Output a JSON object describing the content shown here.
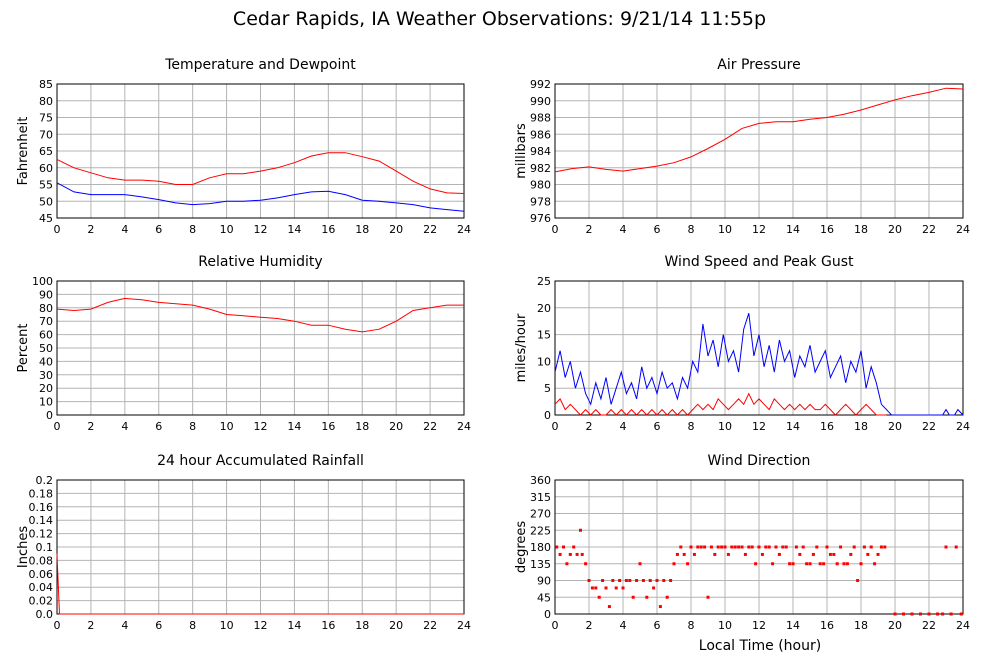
{
  "page_title": "Cedar Rapids, IA Weather Observations: 9/21/14 11:55p",
  "x_axis_label": "Local Time (hour)",
  "colors": {
    "red": "#ff0000",
    "blue": "#0000ff",
    "grid": "#b4b4b4"
  },
  "chart_data": [
    {
      "id": "temp",
      "type": "line",
      "title": "Temperature and Dewpoint",
      "ylabel": "Fahrenheit",
      "xlim": [
        0,
        24
      ],
      "ylim": [
        45,
        85
      ],
      "xticks": [
        0,
        2,
        4,
        6,
        8,
        10,
        12,
        14,
        16,
        18,
        20,
        22,
        24
      ],
      "yticks": [
        45,
        50,
        55,
        60,
        65,
        70,
        75,
        80,
        85
      ],
      "grid": true,
      "series": [
        {
          "color": "red",
          "x": [
            0,
            1,
            2,
            3,
            4,
            5,
            6,
            7,
            8,
            9,
            10,
            11,
            12,
            13,
            14,
            15,
            16,
            17,
            18,
            19,
            20,
            21,
            22,
            23,
            24
          ],
          "y": [
            62.5,
            60,
            58.5,
            57,
            56.3,
            56.3,
            56,
            55,
            55,
            57,
            58.2,
            58.2,
            59,
            60,
            61.5,
            63.5,
            64.5,
            64.5,
            63.3,
            62,
            59,
            56,
            53.7,
            52.5,
            52.3
          ]
        },
        {
          "color": "blue",
          "x": [
            0,
            1,
            2,
            3,
            4,
            5,
            6,
            7,
            8,
            9,
            10,
            11,
            12,
            13,
            14,
            15,
            16,
            17,
            18,
            19,
            20,
            21,
            22,
            23,
            24
          ],
          "y": [
            55.5,
            52.8,
            52,
            52,
            52,
            51.3,
            50.5,
            49.5,
            49,
            49.3,
            50,
            50,
            50.3,
            51,
            52,
            52.8,
            53,
            52,
            50.3,
            50,
            49.5,
            49,
            48,
            47.5,
            47
          ]
        }
      ]
    },
    {
      "id": "pressure",
      "type": "line",
      "title": "Air Pressure",
      "ylabel": "millibars",
      "xlim": [
        0,
        24
      ],
      "ylim": [
        976,
        992
      ],
      "xticks": [
        0,
        2,
        4,
        6,
        8,
        10,
        12,
        14,
        16,
        18,
        20,
        22,
        24
      ],
      "yticks": [
        976,
        978,
        980,
        982,
        984,
        986,
        988,
        990,
        992
      ],
      "grid": true,
      "series": [
        {
          "color": "red",
          "x": [
            0,
            1,
            2,
            3,
            4,
            5,
            6,
            7,
            8,
            9,
            10,
            11,
            12,
            13,
            14,
            15,
            16,
            17,
            18,
            19,
            20,
            21,
            22,
            23,
            24
          ],
          "y": [
            981.5,
            981.9,
            982.1,
            981.8,
            981.6,
            981.9,
            982.2,
            982.6,
            983.3,
            984.3,
            985.4,
            986.7,
            987.3,
            987.5,
            987.5,
            987.8,
            988.0,
            988.4,
            988.9,
            989.5,
            990.1,
            990.6,
            991.0,
            991.5,
            991.4
          ]
        }
      ]
    },
    {
      "id": "humidity",
      "type": "line",
      "title": "Relative Humidity",
      "ylabel": "Percent",
      "xlim": [
        0,
        24
      ],
      "ylim": [
        0,
        100
      ],
      "xticks": [
        0,
        2,
        4,
        6,
        8,
        10,
        12,
        14,
        16,
        18,
        20,
        22,
        24
      ],
      "yticks": [
        0,
        10,
        20,
        30,
        40,
        50,
        60,
        70,
        80,
        90,
        100
      ],
      "grid": true,
      "series": [
        {
          "color": "red",
          "x": [
            0,
            1,
            2,
            3,
            4,
            5,
            6,
            7,
            8,
            9,
            10,
            11,
            12,
            13,
            14,
            15,
            16,
            17,
            18,
            19,
            20,
            21,
            22,
            23,
            24
          ],
          "y": [
            79,
            78,
            79,
            84,
            87,
            86,
            84,
            83,
            82,
            79,
            75,
            74,
            73,
            72,
            70,
            67,
            67,
            64,
            62,
            64,
            70,
            78,
            80,
            82,
            82
          ]
        }
      ]
    },
    {
      "id": "wind",
      "type": "line",
      "title": "Wind Speed and Peak Gust",
      "ylabel": "miles/hour",
      "xlim": [
        0,
        24
      ],
      "ylim": [
        0,
        25
      ],
      "xticks": [
        0,
        2,
        4,
        6,
        8,
        10,
        12,
        14,
        16,
        18,
        20,
        22,
        24
      ],
      "yticks": [
        0,
        5,
        10,
        15,
        20,
        25
      ],
      "grid": true,
      "series": [
        {
          "color": "blue",
          "x": [
            0,
            0.3,
            0.6,
            0.9,
            1.2,
            1.5,
            1.8,
            2.1,
            2.4,
            2.7,
            3.0,
            3.3,
            3.6,
            3.9,
            4.2,
            4.5,
            4.8,
            5.1,
            5.4,
            5.7,
            6.0,
            6.3,
            6.6,
            6.9,
            7.2,
            7.5,
            7.8,
            8.1,
            8.4,
            8.7,
            9.0,
            9.3,
            9.6,
            9.9,
            10.2,
            10.5,
            10.8,
            11.1,
            11.4,
            11.7,
            12.0,
            12.3,
            12.6,
            12.9,
            13.2,
            13.5,
            13.8,
            14.1,
            14.4,
            14.7,
            15.0,
            15.3,
            15.6,
            15.9,
            16.2,
            16.5,
            16.8,
            17.1,
            17.4,
            17.7,
            18.0,
            18.3,
            18.6,
            18.9,
            19.2,
            19.5,
            19.8,
            20.0,
            22.8,
            23.0,
            23.2,
            23.5,
            23.7,
            24.0
          ],
          "y": [
            8,
            12,
            7,
            10,
            5,
            8,
            4,
            2,
            6,
            3,
            7,
            2,
            5,
            8,
            4,
            6,
            3,
            9,
            5,
            7,
            4,
            8,
            5,
            6,
            3,
            7,
            5,
            10,
            8,
            17,
            11,
            14,
            9,
            15,
            10,
            12,
            8,
            16,
            19,
            11,
            15,
            9,
            13,
            8,
            14,
            10,
            12,
            7,
            11,
            9,
            13,
            8,
            10,
            12,
            7,
            9,
            11,
            6,
            10,
            8,
            12,
            5,
            9,
            6,
            2,
            1,
            0,
            0,
            0,
            1,
            0,
            0,
            1,
            0
          ]
        },
        {
          "color": "red",
          "x": [
            0,
            0.3,
            0.6,
            0.9,
            1.2,
            1.5,
            1.8,
            2.1,
            2.4,
            2.7,
            3.0,
            3.3,
            3.6,
            3.9,
            4.2,
            4.5,
            4.8,
            5.1,
            5.4,
            5.7,
            6.0,
            6.3,
            6.6,
            6.9,
            7.2,
            7.5,
            7.8,
            8.1,
            8.4,
            8.7,
            9.0,
            9.3,
            9.6,
            9.9,
            10.2,
            10.5,
            10.8,
            11.1,
            11.4,
            11.7,
            12.0,
            12.3,
            12.6,
            12.9,
            13.2,
            13.5,
            13.8,
            14.1,
            14.4,
            14.7,
            15.0,
            15.3,
            15.6,
            15.9,
            16.2,
            16.5,
            16.8,
            17.1,
            17.4,
            17.7,
            18.0,
            18.3,
            18.6,
            18.9,
            19.2,
            19.5
          ],
          "y": [
            2,
            3,
            1,
            2,
            1,
            0,
            1,
            0,
            1,
            0,
            0,
            1,
            0,
            1,
            0,
            1,
            0,
            1,
            0,
            1,
            0,
            1,
            0,
            1,
            0,
            1,
            0,
            1,
            2,
            1,
            2,
            1,
            3,
            2,
            1,
            2,
            3,
            2,
            4,
            2,
            3,
            2,
            1,
            3,
            2,
            1,
            2,
            1,
            2,
            1,
            2,
            1,
            1,
            2,
            1,
            0,
            1,
            2,
            1,
            0,
            1,
            2,
            1,
            0,
            0,
            0
          ]
        }
      ]
    },
    {
      "id": "rain",
      "type": "line",
      "title": "24 hour Accumulated Rainfall",
      "ylabel": "Inches",
      "xlim": [
        0,
        24
      ],
      "ylim": [
        0,
        0.2
      ],
      "xticks": [
        0,
        2,
        4,
        6,
        8,
        10,
        12,
        14,
        16,
        18,
        20,
        22,
        24
      ],
      "yticks": [
        0.0,
        0.02,
        0.04,
        0.06,
        0.08,
        0.1,
        0.12,
        0.14,
        0.16,
        0.18,
        0.2
      ],
      "ytick_labels": [
        "0.0",
        "0.02",
        "0.04",
        "0.06",
        "0.08",
        "0.1",
        "0.12",
        "0.14",
        "0.16",
        "0.18",
        "0.2"
      ],
      "grid": true,
      "series": [
        {
          "color": "red",
          "x": [
            0,
            0.05,
            0.15,
            0.3,
            24
          ],
          "y": [
            0.09,
            0.06,
            0.0,
            0.0,
            0.0
          ]
        }
      ]
    },
    {
      "id": "direction",
      "type": "scatter",
      "title": "Wind Direction",
      "ylabel": "degrees",
      "xlabel": "Local Time (hour)",
      "xlim": [
        0,
        24
      ],
      "ylim": [
        0,
        360
      ],
      "xticks": [
        0,
        2,
        4,
        6,
        8,
        10,
        12,
        14,
        16,
        18,
        20,
        22,
        24
      ],
      "yticks": [
        0,
        45,
        90,
        135,
        180,
        225,
        270,
        315,
        360
      ],
      "grid": true,
      "series": [
        {
          "color": "red",
          "x": [
            0.1,
            0.3,
            0.5,
            0.7,
            0.9,
            1.1,
            1.3,
            1.5,
            1.6,
            1.8,
            2.0,
            2.2,
            2.4,
            2.6,
            2.8,
            3.0,
            3.2,
            3.4,
            3.6,
            3.8,
            4.0,
            4.2,
            4.4,
            4.6,
            4.8,
            5.0,
            5.2,
            5.4,
            5.6,
            5.8,
            6.0,
            6.2,
            6.4,
            6.6,
            6.8,
            7.0,
            7.2,
            7.4,
            7.6,
            7.8,
            8.0,
            8.2,
            8.4,
            8.6,
            8.8,
            9.0,
            9.2,
            9.4,
            9.6,
            9.8,
            10.0,
            10.2,
            10.4,
            10.6,
            10.8,
            11.0,
            11.2,
            11.4,
            11.6,
            11.8,
            12.0,
            12.2,
            12.4,
            12.6,
            12.8,
            13.0,
            13.2,
            13.4,
            13.6,
            13.8,
            14.0,
            14.2,
            14.4,
            14.6,
            14.8,
            15.0,
            15.2,
            15.4,
            15.6,
            15.8,
            16.0,
            16.2,
            16.4,
            16.6,
            16.8,
            17.0,
            17.2,
            17.4,
            17.6,
            17.8,
            18.0,
            18.2,
            18.4,
            18.6,
            18.8,
            19.0,
            19.2,
            19.4,
            20.0,
            20.5,
            21.0,
            21.5,
            22.0,
            22.5,
            22.8,
            23.0,
            23.3,
            23.6,
            23.9
          ],
          "y": [
            180,
            160,
            180,
            135,
            160,
            180,
            160,
            225,
            160,
            135,
            90,
            70,
            70,
            45,
            90,
            70,
            20,
            90,
            70,
            90,
            70,
            90,
            90,
            45,
            90,
            135,
            90,
            45,
            90,
            70,
            90,
            20,
            90,
            45,
            90,
            135,
            160,
            180,
            160,
            135,
            180,
            160,
            180,
            180,
            180,
            45,
            180,
            160,
            180,
            180,
            180,
            160,
            180,
            180,
            180,
            180,
            160,
            180,
            180,
            135,
            180,
            160,
            180,
            180,
            135,
            180,
            160,
            180,
            180,
            135,
            135,
            180,
            160,
            180,
            135,
            135,
            160,
            180,
            135,
            135,
            180,
            160,
            160,
            135,
            180,
            135,
            135,
            160,
            180,
            90,
            135,
            180,
            160,
            180,
            135,
            160,
            180,
            180,
            0,
            0,
            0,
            0,
            0,
            0,
            0,
            180,
            0,
            180,
            0
          ]
        }
      ]
    }
  ]
}
